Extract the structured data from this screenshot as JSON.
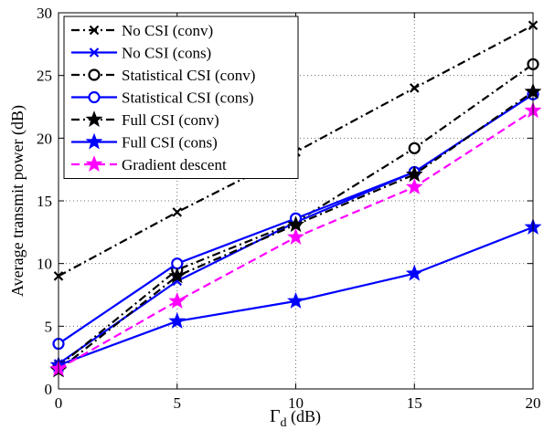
{
  "chart_data": {
    "type": "line",
    "x": [
      0,
      5,
      10,
      15,
      20
    ],
    "xlim": [
      0,
      20
    ],
    "ylim": [
      0,
      30
    ],
    "xticks": [
      0,
      5,
      10,
      15,
      20
    ],
    "yticks": [
      0,
      5,
      10,
      15,
      20,
      25,
      30
    ],
    "xlabel": "Γ",
    "xlabel_sub": "d",
    "xlabel_unit": " (dB)",
    "ylabel": "Average transmit power (dB)",
    "grid": true,
    "legend_position": "top-left",
    "series": [
      {
        "name": "No CSI (conv)",
        "values": [
          9.0,
          14.1,
          18.9,
          24.0,
          29.0
        ],
        "color": "#000000",
        "linestyle": "dashdot",
        "marker": "x"
      },
      {
        "name": "No CSI (cons)",
        "values": [
          2.0,
          8.6,
          13.3,
          17.3,
          23.5
        ],
        "color": "#0000ff",
        "linestyle": "solid",
        "marker": "x"
      },
      {
        "name": "Statistical CSI (conv)",
        "values": [
          1.8,
          9.5,
          13.3,
          19.2,
          25.9
        ],
        "color": "#000000",
        "linestyle": "dashdot",
        "marker": "circle"
      },
      {
        "name": "Statistical CSI (cons)",
        "values": [
          3.6,
          10.0,
          13.6,
          17.3,
          23.5
        ],
        "color": "#0000ff",
        "linestyle": "solid",
        "marker": "circle"
      },
      {
        "name": "Full CSI (conv)",
        "values": [
          1.5,
          9.0,
          13.1,
          17.1,
          23.7
        ],
        "color": "#000000",
        "linestyle": "dashdot",
        "marker": "star"
      },
      {
        "name": "Full CSI (cons)",
        "values": [
          1.9,
          5.4,
          7.0,
          9.2,
          12.9
        ],
        "color": "#0000ff",
        "linestyle": "solid",
        "marker": "star"
      },
      {
        "name": "Gradient descent",
        "values": [
          1.6,
          7.0,
          12.1,
          16.1,
          22.2
        ],
        "color": "#ff00ff",
        "linestyle": "dashed",
        "marker": "star"
      }
    ]
  }
}
